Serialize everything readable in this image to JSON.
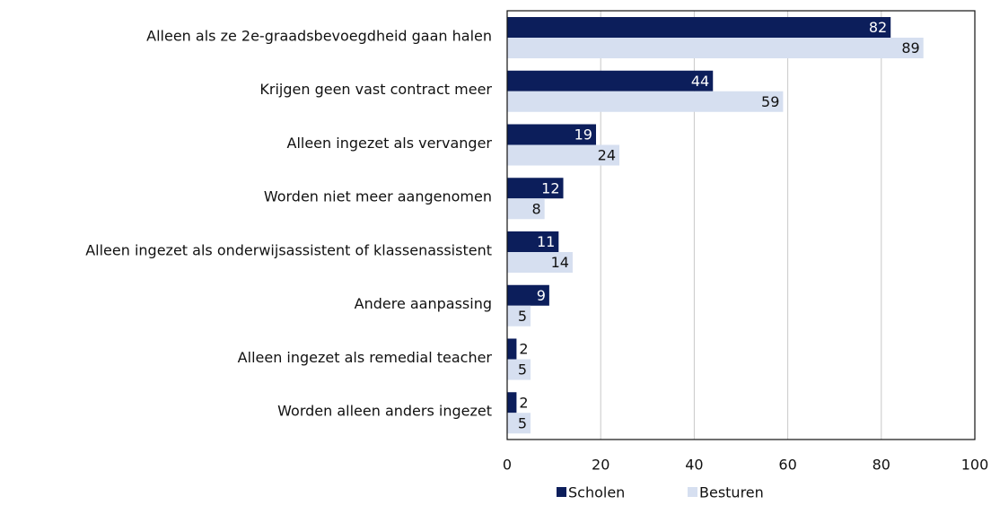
{
  "chart_data": {
    "type": "bar",
    "orientation": "horizontal",
    "categories": [
      "Alleen als ze 2e-graadsbevoegdheid gaan halen",
      "Krijgen geen vast contract meer",
      "Alleen ingezet als vervanger",
      "Worden niet meer aangenomen",
      "Alleen ingezet als onderwijsassistent of klassenassistent",
      "Andere aanpassing",
      "Alleen ingezet als remedial teacher",
      "Worden alleen anders ingezet"
    ],
    "series": [
      {
        "name": "Scholen",
        "color": "#0c1e5b",
        "values": [
          82,
          44,
          19,
          12,
          11,
          9,
          2,
          2
        ]
      },
      {
        "name": "Besturen",
        "color": "#d6dff0",
        "values": [
          89,
          59,
          24,
          8,
          14,
          5,
          5,
          5
        ]
      }
    ],
    "xlim": [
      0,
      100
    ],
    "xticks": [
      0,
      20,
      40,
      60,
      80,
      100
    ],
    "grid": true,
    "legend": "bottom"
  }
}
